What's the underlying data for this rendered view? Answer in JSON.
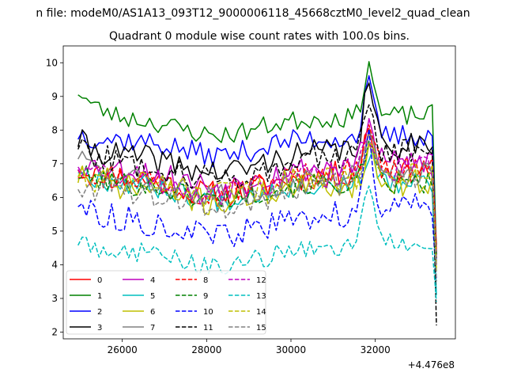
{
  "chart_data": {
    "type": "line",
    "suptitle": "n file: modeM0/AS1A13_093T12_9000006118_45668cztM0_level2_quad_clean",
    "title": "Quadrant 0 module wise count rates with 100.0s bins.",
    "xlabel": "",
    "ylabel": "",
    "x_offset_label": "+4.476e8",
    "xlim": [
      24600,
      33900
    ],
    "ylim": [
      1.8,
      10.5
    ],
    "xticks": [
      26000,
      28000,
      30000,
      32000
    ],
    "xtick_labels": [
      "26000",
      "28000",
      "30000",
      "32000"
    ],
    "yticks": [
      2,
      3,
      4,
      5,
      6,
      7,
      8,
      9,
      10
    ],
    "ytick_labels": [
      "2",
      "3",
      "4",
      "5",
      "6",
      "7",
      "8",
      "9",
      "10"
    ],
    "grid": false,
    "legend_position": "lower-left",
    "x_start": 24950,
    "x_step": 100,
    "n_points": 86,
    "final_values": [
      4.6,
      4.3,
      4.1,
      4.3,
      4.2,
      3.1,
      3.8,
      4.0,
      4.4,
      4.2,
      3.6,
      2.2,
      4.0,
      2.9,
      3.9,
      3.5
    ],
    "series": [
      {
        "name": "0",
        "color": "#ff0000",
        "style": "solid",
        "base": 6.55,
        "start": 6.8,
        "peak": 1.3,
        "late": 0.2,
        "amp": 0.4,
        "seed": 11
      },
      {
        "name": "1",
        "color": "#008000",
        "style": "solid",
        "base": 8.3,
        "start": 9.2,
        "peak": 1.6,
        "late": 0.1,
        "amp": 0.3,
        "seed": 23
      },
      {
        "name": "2",
        "color": "#0000ff",
        "style": "solid",
        "base": 7.7,
        "start": 7.9,
        "peak": 1.5,
        "late": 0.1,
        "amp": 0.35,
        "seed": 37
      },
      {
        "name": "3",
        "color": "#000000",
        "style": "solid",
        "base": 7.2,
        "start": 7.7,
        "peak": 1.8,
        "late": 0.3,
        "amp": 0.4,
        "seed": 41
      },
      {
        "name": "4",
        "color": "#bf00bf",
        "style": "solid",
        "base": 6.8,
        "start": 7.1,
        "peak": 1.2,
        "late": 0.2,
        "amp": 0.4,
        "seed": 53
      },
      {
        "name": "5",
        "color": "#00bfbf",
        "style": "solid",
        "base": 6.4,
        "start": 6.9,
        "peak": 1.0,
        "late": 0.0,
        "amp": 0.35,
        "seed": 67
      },
      {
        "name": "6",
        "color": "#bfbf00",
        "style": "solid",
        "base": 6.3,
        "start": 6.8,
        "peak": 1.0,
        "late": 0.1,
        "amp": 0.4,
        "seed": 71
      },
      {
        "name": "7",
        "color": "#808080",
        "style": "solid",
        "base": 6.5,
        "start": 7.3,
        "peak": 1.1,
        "late": 0.2,
        "amp": 0.35,
        "seed": 83
      },
      {
        "name": "8",
        "color": "#ff0000",
        "style": "dashed",
        "base": 6.6,
        "start": 7.0,
        "peak": 1.6,
        "late": 0.2,
        "amp": 0.4,
        "seed": 97
      },
      {
        "name": "9",
        "color": "#008000",
        "style": "dashed",
        "base": 6.4,
        "start": 6.7,
        "peak": 1.0,
        "late": 0.0,
        "amp": 0.35,
        "seed": 101
      },
      {
        "name": "10",
        "color": "#0000ff",
        "style": "dashed",
        "base": 5.3,
        "start": 5.9,
        "peak": 2.1,
        "late": 0.3,
        "amp": 0.4,
        "seed": 113
      },
      {
        "name": "11",
        "color": "#000000",
        "style": "dashed",
        "base": 7.0,
        "start": 7.6,
        "peak": 1.6,
        "late": 0.3,
        "amp": 0.4,
        "seed": 127
      },
      {
        "name": "12",
        "color": "#bf00bf",
        "style": "dashed",
        "base": 6.6,
        "start": 7.0,
        "peak": 1.2,
        "late": 0.2,
        "amp": 0.4,
        "seed": 131
      },
      {
        "name": "13",
        "color": "#00bfbf",
        "style": "dashed",
        "base": 4.4,
        "start": 4.7,
        "peak": 2.0,
        "late": 0.2,
        "amp": 0.3,
        "seed": 149
      },
      {
        "name": "14",
        "color": "#bfbf00",
        "style": "dashed",
        "base": 6.5,
        "start": 6.6,
        "peak": 1.1,
        "late": 0.1,
        "amp": 0.4,
        "seed": 151
      },
      {
        "name": "15",
        "color": "#808080",
        "style": "dashed",
        "base": 6.2,
        "start": 6.4,
        "peak": 1.4,
        "late": 0.3,
        "amp": 0.4,
        "seed": 163
      }
    ]
  }
}
